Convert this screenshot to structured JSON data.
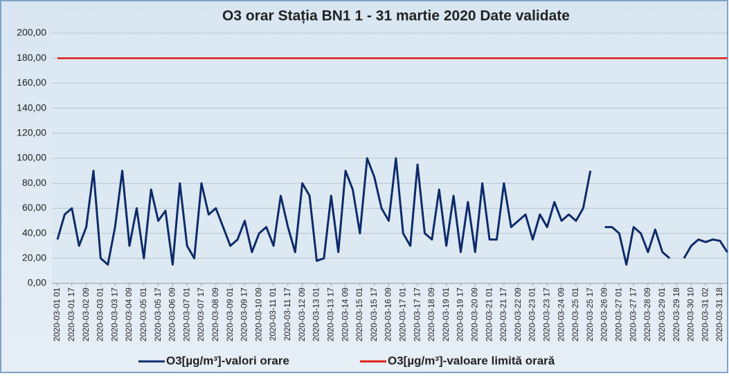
{
  "chart_data": {
    "type": "line",
    "title": "O3 orar Stația BN1 1 - 31 martie 2020 Date validate",
    "categories": [
      "2020-03-01 01",
      null,
      "2020-03-01 17",
      null,
      "2020-03-02 09",
      null,
      "2020-03-03 01",
      null,
      "2020-03-03 17",
      null,
      "2020-03-04 09",
      null,
      "2020-03-05 01",
      null,
      "2020-03-05 17",
      null,
      "2020-03-06 09",
      null,
      "2020-03-07 01",
      null,
      "2020-03-07 17",
      null,
      "2020-03-08 09",
      null,
      "2020-03-09 01",
      null,
      "2020-03-09 17",
      null,
      "2020-03-10 09",
      null,
      "2020-03-11 01",
      null,
      "2020-03-11 17",
      null,
      "2020-03-12 09",
      null,
      "2020-03-13 01",
      null,
      "2020-03-13 17",
      null,
      "2020-03-14 09",
      null,
      "2020-03-15 01",
      null,
      "2020-03-15 17",
      null,
      "2020-03-16 09",
      null,
      "2020-03-17 01",
      null,
      "2020-03-17 17",
      null,
      "2020-03-18 09",
      null,
      "2020-03-19 01",
      null,
      "2020-03-19 17",
      null,
      "2020-03-20 09",
      null,
      "2020-03-21 01",
      null,
      "2020-03-21 17",
      null,
      "2020-03-22 09",
      null,
      "2020-03-23 01",
      null,
      "2020-03-23 17",
      null,
      "2020-03-24 09",
      null,
      "2020-03-25 01",
      null,
      "2020-03-25 17",
      null,
      "2020-03-26 09",
      null,
      "2020-03-27 01",
      null,
      "2020-03-27 17",
      null,
      "2020-03-28 09",
      null,
      "2020-03-29 01",
      null,
      "2020-03-29 18",
      null,
      "2020-03-30 10",
      null,
      "2020-03-31 02",
      null,
      "2020-03-31 18",
      null
    ],
    "series": [
      {
        "name": "O3[µg/m³]-valori orare",
        "color": "#0d2a6b",
        "values": [
          35,
          55,
          60,
          30,
          45,
          90,
          20,
          15,
          45,
          90,
          30,
          60,
          20,
          75,
          50,
          58,
          15,
          80,
          30,
          20,
          80,
          55,
          60,
          45,
          30,
          35,
          50,
          25,
          40,
          45,
          30,
          70,
          45,
          25,
          80,
          70,
          18,
          20,
          70,
          25,
          90,
          75,
          40,
          100,
          85,
          60,
          50,
          100,
          40,
          30,
          95,
          40,
          35,
          75,
          30,
          70,
          25,
          65,
          25,
          80,
          35,
          35,
          80,
          45,
          50,
          55,
          35,
          55,
          45,
          65,
          50,
          55,
          50,
          60,
          90,
          null,
          45,
          45,
          40,
          15,
          45,
          40,
          25,
          43,
          25,
          20,
          null,
          20,
          30,
          35,
          33,
          35,
          34,
          25
        ]
      },
      {
        "name": "O3[µg/m³]-valoare limită orară",
        "color": "#e01b1b",
        "values": [
          180,
          180,
          180,
          180,
          180,
          180,
          180,
          180,
          180,
          180,
          180,
          180,
          180,
          180,
          180,
          180,
          180,
          180,
          180,
          180,
          180,
          180,
          180,
          180,
          180,
          180,
          180,
          180,
          180,
          180,
          180,
          180,
          180,
          180,
          180,
          180,
          180,
          180,
          180,
          180,
          180,
          180,
          180,
          180,
          180,
          180,
          180,
          180,
          180,
          180,
          180,
          180,
          180,
          180,
          180,
          180,
          180,
          180,
          180,
          180,
          180,
          180,
          180,
          180,
          180,
          180,
          180,
          180,
          180,
          180,
          180,
          180,
          180,
          180,
          180,
          180,
          180,
          180,
          180,
          180,
          180,
          180,
          180,
          180,
          180,
          180,
          180,
          180,
          180,
          180,
          180,
          180,
          180,
          180
        ]
      }
    ],
    "ylim": [
      0,
      200
    ],
    "yticks": [
      {
        "value": 0,
        "label": "0,00"
      },
      {
        "value": 20,
        "label": "20,00"
      },
      {
        "value": 40,
        "label": "40,00"
      },
      {
        "value": 60,
        "label": "60,00"
      },
      {
        "value": 80,
        "label": "80,00"
      },
      {
        "value": 100,
        "label": "100,00"
      },
      {
        "value": 120,
        "label": "120,00"
      },
      {
        "value": 140,
        "label": "140,00"
      },
      {
        "value": 160,
        "label": "160,00"
      },
      {
        "value": 180,
        "label": "180,00"
      },
      {
        "value": 200,
        "label": "200,00"
      }
    ],
    "grid": true
  }
}
